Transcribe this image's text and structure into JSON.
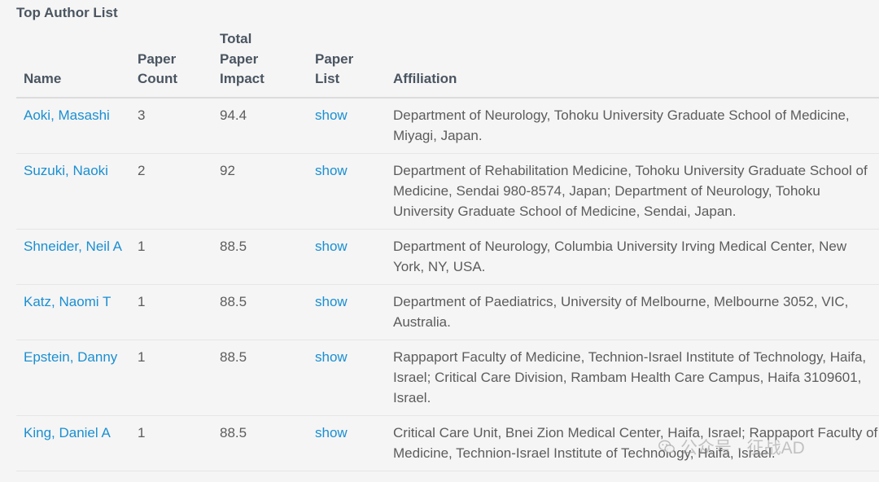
{
  "title": "Top Author List",
  "columns": {
    "name": "Name",
    "count": [
      "Paper",
      "Count"
    ],
    "impact": [
      "Total",
      "Paper",
      "Impact"
    ],
    "list": [
      "Paper",
      "List"
    ],
    "affiliation": "Affiliation"
  },
  "rows": [
    {
      "name": "Aoki, Masashi",
      "count": "3",
      "impact": "94.4",
      "list": "show",
      "affiliation": "Department of Neurology, Tohoku University Graduate School of Medicine, Miyagi, Japan."
    },
    {
      "name": "Suzuki, Naoki",
      "count": "2",
      "impact": "92",
      "list": "show",
      "affiliation": "Department of Rehabilitation Medicine, Tohoku University Graduate School of Medicine, Sendai 980-8574, Japan; Department of Neurology, Tohoku University Graduate School of Medicine, Sendai, Japan."
    },
    {
      "name": "Shneider, Neil A",
      "count": "1",
      "impact": "88.5",
      "list": "show",
      "affiliation": "Department of Neurology, Columbia University Irving Medical Center, New York, NY, USA."
    },
    {
      "name": "Katz, Naomi T",
      "count": "1",
      "impact": "88.5",
      "list": "show",
      "affiliation": "Department of Paediatrics, University of Melbourne, Melbourne 3052, VIC, Australia."
    },
    {
      "name": "Epstein, Danny",
      "count": "1",
      "impact": "88.5",
      "list": "show",
      "affiliation": "Rappaport Faculty of Medicine, Technion-Israel Institute of Technology, Haifa, Israel; Critical Care Division, Rambam Health Care Campus, Haifa 3109601, Israel."
    },
    {
      "name": "King, Daniel A",
      "count": "1",
      "impact": "88.5",
      "list": "show",
      "affiliation": "Critical Care Unit, Bnei Zion Medical Center, Haifa, Israel; Rappaport Faculty of Medicine, Technion-Israel Institute of Technology, Haifa, Israel."
    }
  ],
  "watermark": {
    "text": "公众号 · 征战AD",
    "icon": "wechat-logo-icon"
  }
}
